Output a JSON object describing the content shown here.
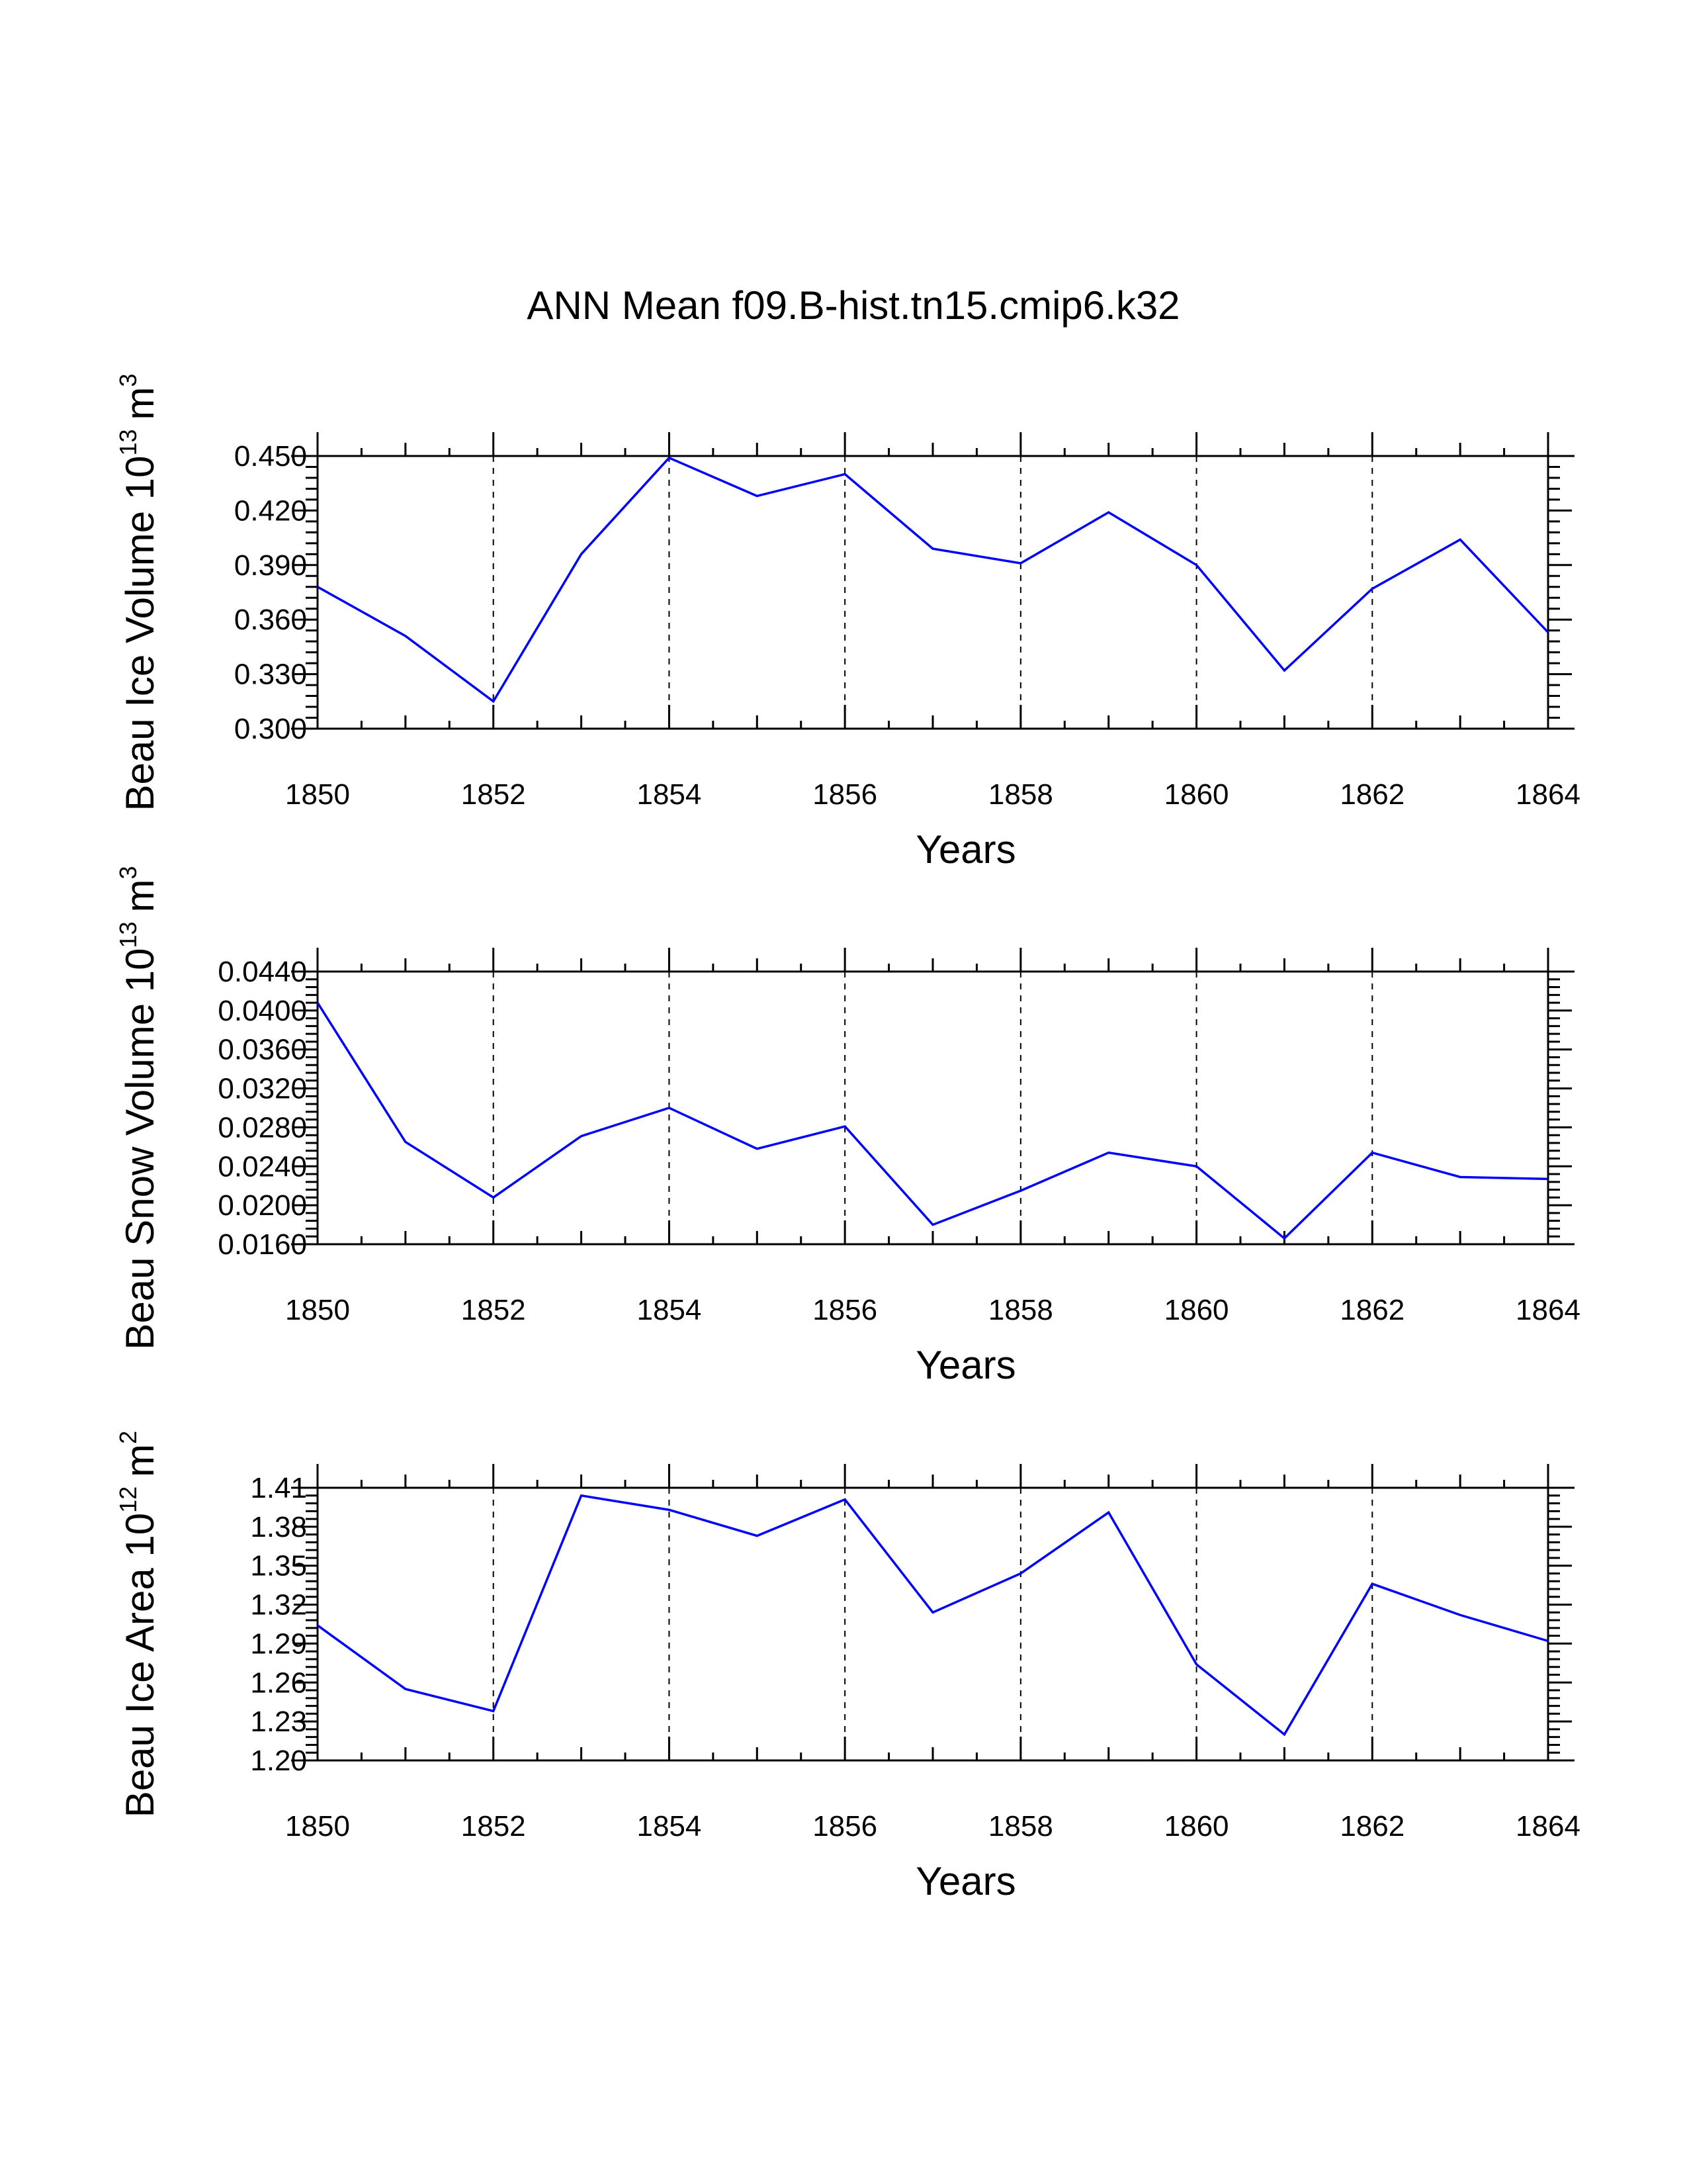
{
  "title": "ANN Mean f09.B-hist.tn15.cmip6.k32",
  "colors": {
    "line": "#0000ff",
    "axis": "#000000",
    "grid": "#000000"
  },
  "chart_data": [
    {
      "type": "line",
      "name": "Beau Ice Volume",
      "ylabel_text": "Beau Ice Volume 10",
      "ylabel_exp": "13",
      "ylabel_unit": "m",
      "ylabel_unit_exp": "3",
      "xlabel": "Years",
      "x": [
        1850,
        1851,
        1852,
        1853,
        1854,
        1855,
        1856,
        1857,
        1858,
        1859,
        1860,
        1861,
        1862,
        1863,
        1864
      ],
      "values": [
        0.378,
        0.351,
        0.315,
        0.396,
        0.449,
        0.428,
        0.44,
        0.399,
        0.391,
        0.419,
        0.39,
        0.332,
        0.377,
        0.404,
        0.353
      ],
      "xlim": [
        1850,
        1864
      ],
      "ylim": [
        0.3,
        0.45
      ],
      "yticks": [
        "0.300",
        "0.330",
        "0.360",
        "0.390",
        "0.420",
        "0.450"
      ],
      "xticks": [
        "1850",
        "1852",
        "1854",
        "1856",
        "1858",
        "1860",
        "1862",
        "1864"
      ],
      "grid": "vertical dashed at major x ticks"
    },
    {
      "type": "line",
      "name": "Beau Snow Volume",
      "ylabel_text": "Beau Snow Volume 10",
      "ylabel_exp": "13",
      "ylabel_unit": "m",
      "ylabel_unit_exp": "3",
      "xlabel": "Years",
      "x": [
        1850,
        1851,
        1852,
        1853,
        1854,
        1855,
        1856,
        1857,
        1858,
        1859,
        1860,
        1861,
        1862,
        1863,
        1864
      ],
      "values": [
        0.0408,
        0.0265,
        0.0208,
        0.0271,
        0.03,
        0.0258,
        0.0281,
        0.018,
        0.0215,
        0.0254,
        0.024,
        0.0166,
        0.0254,
        0.0229,
        0.0227
      ],
      "xlim": [
        1850,
        1864
      ],
      "ylim": [
        0.016,
        0.044
      ],
      "yticks": [
        "0.0160",
        "0.0200",
        "0.0240",
        "0.0280",
        "0.0320",
        "0.0360",
        "0.0400",
        "0.0440"
      ],
      "xticks": [
        "1850",
        "1852",
        "1854",
        "1856",
        "1858",
        "1860",
        "1862",
        "1864"
      ],
      "grid": "vertical dashed at major x ticks"
    },
    {
      "type": "line",
      "name": "Beau Ice Area",
      "ylabel_text": "Beau Ice Area 10",
      "ylabel_exp": "12",
      "ylabel_unit": "m",
      "ylabel_unit_exp": "2",
      "xlabel": "Years",
      "x": [
        1850,
        1851,
        1852,
        1853,
        1854,
        1855,
        1856,
        1857,
        1858,
        1859,
        1860,
        1861,
        1862,
        1863,
        1864
      ],
      "values": [
        1.304,
        1.255,
        1.238,
        1.404,
        1.393,
        1.373,
        1.401,
        1.314,
        1.344,
        1.391,
        1.274,
        1.22,
        1.336,
        1.312,
        1.292
      ],
      "xlim": [
        1850,
        1864
      ],
      "ylim": [
        1.2,
        1.41
      ],
      "yticks": [
        "1.20",
        "1.23",
        "1.26",
        "1.29",
        "1.32",
        "1.35",
        "1.38",
        "1.41"
      ],
      "xticks": [
        "1850",
        "1852",
        "1854",
        "1856",
        "1858",
        "1860",
        "1862",
        "1864"
      ],
      "grid": "vertical dashed at major x ticks"
    }
  ]
}
